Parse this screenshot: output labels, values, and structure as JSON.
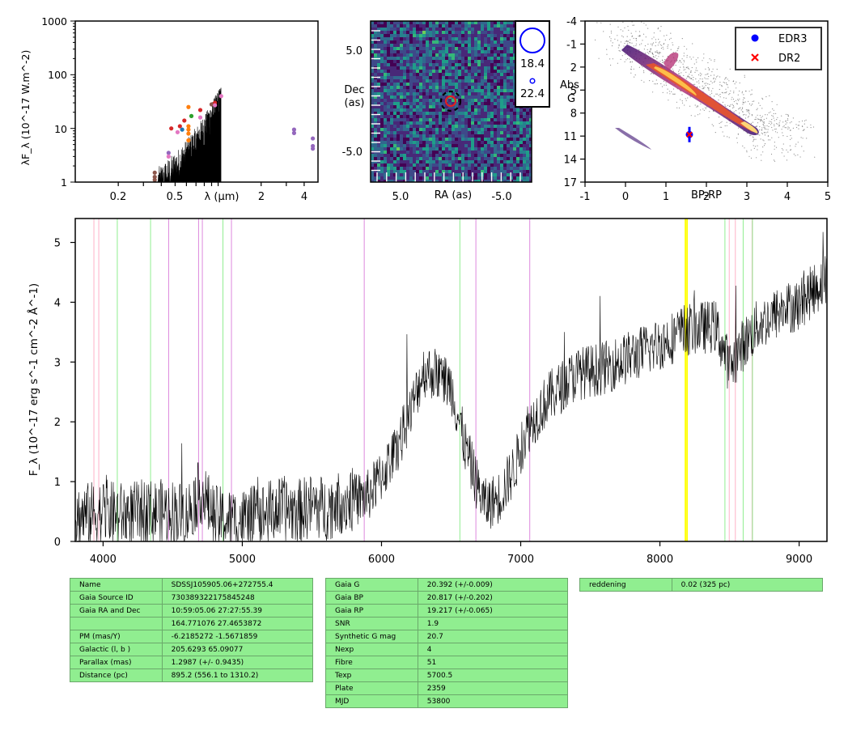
{
  "sed_panel": {
    "ylabel": "λF_λ (10^-17 W.m^-2)",
    "ytick_labels": [
      "1000",
      "100",
      "10",
      "1"
    ],
    "xtick_labels": [
      "0.2",
      "0.5",
      "λ (μm)",
      "2",
      "4"
    ],
    "chart_data": {
      "type": "scatter",
      "xscale": "log",
      "yscale": "log",
      "xlim": [
        0.1,
        5.0
      ],
      "ylim": [
        1,
        1000
      ],
      "points": [
        {
          "x": 0.36,
          "y": 1.5,
          "color": "#8c564b"
        },
        {
          "x": 0.36,
          "y": 1.25,
          "color": "#8c564b"
        },
        {
          "x": 0.36,
          "y": 1.1,
          "color": "#8c564b"
        },
        {
          "x": 0.45,
          "y": 3.5,
          "color": "#9467bd"
        },
        {
          "x": 0.45,
          "y": 3.0,
          "color": "#e377c2"
        },
        {
          "x": 0.47,
          "y": 10,
          "color": "#d62728"
        },
        {
          "x": 0.52,
          "y": 8.5,
          "color": "#e377c2"
        },
        {
          "x": 0.54,
          "y": 11,
          "color": "#d62728"
        },
        {
          "x": 0.56,
          "y": 9.5,
          "color": "#1f77b4"
        },
        {
          "x": 0.58,
          "y": 14,
          "color": "#d62728"
        },
        {
          "x": 0.62,
          "y": 25,
          "color": "#ff7f0e"
        },
        {
          "x": 0.62,
          "y": 11,
          "color": "#ff7f0e"
        },
        {
          "x": 0.62,
          "y": 9.5,
          "color": "#ff7f0e"
        },
        {
          "x": 0.62,
          "y": 8.0,
          "color": "#ff7f0e"
        },
        {
          "x": 0.62,
          "y": 6.0,
          "color": "#ff7f0e"
        },
        {
          "x": 0.65,
          "y": 17,
          "color": "#2ca02c"
        },
        {
          "x": 0.75,
          "y": 22,
          "color": "#d62728"
        },
        {
          "x": 0.75,
          "y": 16,
          "color": "#e377c2"
        },
        {
          "x": 0.9,
          "y": 28,
          "color": "#8c564b"
        },
        {
          "x": 0.95,
          "y": 30,
          "color": "#d62728"
        },
        {
          "x": 0.95,
          "y": 27,
          "color": "#e377c2"
        },
        {
          "x": 1.05,
          "y": 40,
          "color": "#e377c2"
        },
        {
          "x": 3.4,
          "y": 9.5,
          "color": "#9467bd"
        },
        {
          "x": 3.4,
          "y": 8.2,
          "color": "#9467bd"
        },
        {
          "x": 4.6,
          "y": 6.5,
          "color": "#9467bd"
        },
        {
          "x": 4.6,
          "y": 4.7,
          "color": "#9467bd"
        },
        {
          "x": 4.6,
          "y": 4.2,
          "color": "#9467bd"
        }
      ]
    }
  },
  "image_panel": {
    "ylabel_line1": "Dec",
    "ylabel_line2": "(as)",
    "xlabel": "RA (as)",
    "ytick_labels": [
      "5.0",
      "-5.0"
    ],
    "xtick_labels": [
      "5.0",
      "-5.0"
    ],
    "legend_mags": [
      "18.4",
      "22.4"
    ],
    "colors": {
      "circle_outer": "#000000",
      "circle_red": "#e02020",
      "legend_circle": "#0000ff"
    }
  },
  "hr_panel": {
    "ylabel_line1": "Abs",
    "ylabel_line2": "G",
    "xlabel": "BP-RP",
    "ytick_labels": [
      "-4",
      "-1",
      "2",
      "5",
      "8",
      "11",
      "14",
      "17"
    ],
    "xtick_labels": [
      "-1",
      "0",
      "1",
      "2",
      "3",
      "4",
      "5"
    ],
    "legend": [
      {
        "label": "EDR3",
        "marker": "circle",
        "color": "#0000ff"
      },
      {
        "label": "DR2",
        "marker": "x",
        "color": "#ff0000"
      }
    ],
    "chart_data": {
      "type": "scatter",
      "xlim": [
        -1,
        5
      ],
      "ylim": [
        17,
        -4
      ],
      "series": [
        {
          "name": "EDR3",
          "points": [
            {
              "x": 1.58,
              "y": 10.8,
              "yerr": 1.0
            }
          ]
        },
        {
          "name": "DR2",
          "points": [
            {
              "x": 1.58,
              "y": 10.8
            }
          ]
        }
      ]
    }
  },
  "spectrum_panel": {
    "ylabel": "F_λ (10^-17 erg s^-1 cm^-2 Å^-1)",
    "ytick_labels": [
      "0",
      "1",
      "2",
      "3",
      "4",
      "5"
    ],
    "xtick_labels": [
      "4000",
      "5000",
      "6000",
      "7000",
      "8000",
      "9000"
    ],
    "chart_data": {
      "type": "line",
      "xlim": [
        3800,
        9200
      ],
      "ylim": [
        0,
        5.4
      ],
      "continuum": [
        [
          3800,
          0.4
        ],
        [
          3900,
          0.45
        ],
        [
          4000,
          0.5
        ],
        [
          4100,
          0.45
        ],
        [
          4200,
          0.45
        ],
        [
          4300,
          0.5
        ],
        [
          4400,
          0.5
        ],
        [
          4500,
          0.5
        ],
        [
          4600,
          0.45
        ],
        [
          4700,
          0.85
        ],
        [
          4800,
          0.4
        ],
        [
          4900,
          0.35
        ],
        [
          5000,
          0.35
        ],
        [
          5100,
          0.4
        ],
        [
          5200,
          0.5
        ],
        [
          5300,
          0.55
        ],
        [
          5400,
          0.5
        ],
        [
          5500,
          0.6
        ],
        [
          5600,
          0.55
        ],
        [
          5700,
          0.65
        ],
        [
          5800,
          0.7
        ],
        [
          5900,
          0.75
        ],
        [
          6000,
          1.1
        ],
        [
          6100,
          1.5
        ],
        [
          6200,
          2.1
        ],
        [
          6300,
          2.85
        ],
        [
          6400,
          2.8
        ],
        [
          6500,
          2.6
        ],
        [
          6600,
          1.6
        ],
        [
          6700,
          0.85
        ],
        [
          6750,
          0.6
        ],
        [
          6850,
          0.75
        ],
        [
          6950,
          1.2
        ],
        [
          7050,
          1.9
        ],
        [
          7200,
          2.4
        ],
        [
          7400,
          2.8
        ],
        [
          7600,
          2.9
        ],
        [
          7800,
          3.1
        ],
        [
          8000,
          3.3
        ],
        [
          8200,
          3.55
        ],
        [
          8400,
          3.6
        ],
        [
          8500,
          2.9
        ],
        [
          8600,
          3.3
        ],
        [
          8700,
          3.6
        ],
        [
          8900,
          3.9
        ],
        [
          9000,
          3.95
        ],
        [
          9100,
          4.2
        ],
        [
          9200,
          4.4
        ]
      ],
      "reference_lines": [
        {
          "x": 3934,
          "color": "#ffb0c8"
        },
        {
          "x": 3969,
          "color": "#ffb0c8"
        },
        {
          "x": 4102,
          "color": "#90ee90"
        },
        {
          "x": 4341,
          "color": "#90ee90"
        },
        {
          "x": 4471,
          "color": "#dd88dd"
        },
        {
          "x": 4686,
          "color": "#dd88dd"
        },
        {
          "x": 4713,
          "color": "#dd88dd"
        },
        {
          "x": 4861,
          "color": "#90ee90"
        },
        {
          "x": 4922,
          "color": "#dd88dd"
        },
        {
          "x": 5876,
          "color": "#dd88dd"
        },
        {
          "x": 6563,
          "color": "#90ee90"
        },
        {
          "x": 6678,
          "color": "#dd88dd"
        },
        {
          "x": 7065,
          "color": "#dd88dd"
        },
        {
          "x": 8183,
          "color": "#ffff00"
        },
        {
          "x": 8195,
          "color": "#ffff00"
        },
        {
          "x": 8498,
          "color": "#ffb0c8"
        },
        {
          "x": 8542,
          "color": "#ffb0c8"
        },
        {
          "x": 8662,
          "color": "#ffb0c8"
        },
        {
          "x": 8467,
          "color": "#90ee90"
        },
        {
          "x": 8598,
          "color": "#90ee90"
        },
        {
          "x": 8665,
          "color": "#90ee90"
        }
      ]
    }
  },
  "table_left": [
    [
      "Name",
      "SDSSJ105905.06+272755.4"
    ],
    [
      "Gaia Source ID",
      "730389322175845248"
    ],
    [
      "Gaia RA and Dec",
      "10:59:05.06    27:27:55.39"
    ],
    [
      "",
      "164.771076    27.4653872"
    ],
    [
      "PM (mas/Y)",
      "-6.2185272    -1.5671859"
    ],
    [
      "Galactic (l, b )",
      "205.6293    65.09077"
    ],
    [
      "Parallax (mas)",
      "1.2987 (+/- 0.9435)"
    ],
    [
      "Distance (pc)",
      "895.2 (556.1 to 1310.2)"
    ]
  ],
  "table_mid": [
    [
      "Gaia G",
      "20.392 (+/-0.009)"
    ],
    [
      "Gaia BP",
      "20.817 (+/-0.202)"
    ],
    [
      "Gaia RP",
      "19.217 (+/-0.065)"
    ],
    [
      "SNR",
      "1.9"
    ],
    [
      "Synthetic G mag",
      "20.7"
    ],
    [
      "Nexp",
      "4"
    ],
    [
      "Fibre",
      "51"
    ],
    [
      "Texp",
      "5700.5"
    ],
    [
      "Plate",
      "2359"
    ],
    [
      "MJD",
      "53800"
    ]
  ],
  "table_right": [
    [
      "reddening",
      "0.02 (325 pc)"
    ]
  ]
}
